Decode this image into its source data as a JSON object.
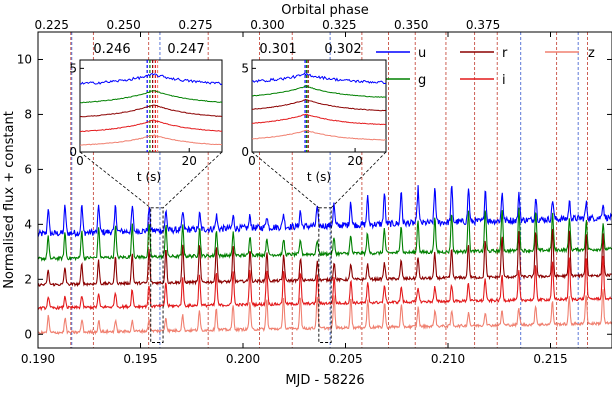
{
  "chart_data": {
    "type": "line",
    "xlabel": "MJD - 58226",
    "ylabel": "Normalised flux + constant",
    "top_axis_label": "Orbital phase",
    "xlim": [
      0.19,
      0.218
    ],
    "ylim": [
      -0.5,
      11.0
    ],
    "x_ticks": [
      "0.190",
      "0.195",
      "0.200",
      "0.205",
      "0.210",
      "0.215"
    ],
    "x_tick_values": [
      0.19,
      0.195,
      0.2,
      0.205,
      0.21,
      0.215
    ],
    "y_ticks": [
      "0",
      "2",
      "4",
      "6",
      "8",
      "10"
    ],
    "y_tick_values": [
      0,
      2,
      4,
      6,
      8,
      10
    ],
    "top_ticks": [
      "0.225",
      "0.250",
      "0.275",
      "0.300",
      "0.325",
      "0.350",
      "0.375"
    ],
    "top_tick_values": [
      0.225,
      0.25,
      0.275,
      0.3,
      0.325,
      0.35,
      0.375
    ],
    "phase_mapping": {
      "mjd_at_0_225": 0.19067,
      "mjd_per_0_025_phase": 0.003507
    },
    "grid": false,
    "legend_position": "top-right",
    "series": [
      {
        "name": "u",
        "color": "#0000ff",
        "baseline": 3.65,
        "amplitude": 0.9,
        "noise": 0.12
      },
      {
        "name": "g",
        "color": "#008000",
        "baseline": 2.75,
        "amplitude": 1.05,
        "noise": 0.06
      },
      {
        "name": "r",
        "color": "#8b0000",
        "baseline": 1.8,
        "amplitude": 1.1,
        "noise": 0.05
      },
      {
        "name": "i",
        "color": "#e31a1c",
        "baseline": 0.95,
        "amplitude": 1.0,
        "noise": 0.05
      },
      {
        "name": "z",
        "color": "#f08070",
        "baseline": 0.05,
        "amplitude": 0.9,
        "noise": 0.05
      }
    ],
    "pulse_period": 0.00082,
    "pulse_first": 0.1905,
    "vlines_red": [
      0.1916,
      0.1927,
      0.1954,
      0.1983,
      0.2008,
      0.2024,
      0.2058,
      0.2071,
      0.2084,
      0.2099,
      0.2113,
      0.2124,
      0.2153,
      0.2168
    ],
    "vlines_blue": [
      0.1916,
      0.1959,
      0.2042,
      0.2135,
      0.2163
    ],
    "zoom_boxes": [
      {
        "x": [
          0.1955,
          0.1961
        ],
        "y": [
          -0.3,
          4.6
        ]
      },
      {
        "x": [
          0.2037,
          0.2043
        ],
        "y": [
          -0.3,
          4.6
        ]
      }
    ],
    "insets": [
      {
        "top_ticks": [
          "0.246",
          "0.247"
        ],
        "xlabel": "t (s)",
        "x_ticks": [
          "0",
          "20"
        ],
        "y_ticks": [
          "0",
          "5"
        ],
        "xlim": [
          0,
          26
        ],
        "ylim": [
          0,
          5.5
        ],
        "peak_t": 13.5,
        "vline_ts": [
          12.3,
          12.8,
          13.3,
          13.8,
          14.2
        ],
        "baselines": [
          4.35,
          3.3,
          2.45,
          1.55,
          0.7
        ],
        "amplitudes": [
          0.65,
          0.85,
          0.85,
          0.8,
          0.7
        ]
      },
      {
        "top_ticks": [
          "0.301",
          "0.302"
        ],
        "xlabel": "t (s)",
        "x_ticks": [
          "0",
          "20"
        ],
        "y_ticks": [
          "0",
          "5"
        ],
        "xlim": [
          0,
          26
        ],
        "ylim": [
          0,
          5.5
        ],
        "peak_t": 10.5,
        "vline_ts": [
          10.3,
          10.6,
          10.9
        ],
        "baselines": [
          4.4,
          3.6,
          2.8,
          1.95,
          1.0
        ],
        "amplitudes": [
          0.55,
          0.75,
          0.75,
          0.7,
          0.65
        ]
      }
    ]
  }
}
